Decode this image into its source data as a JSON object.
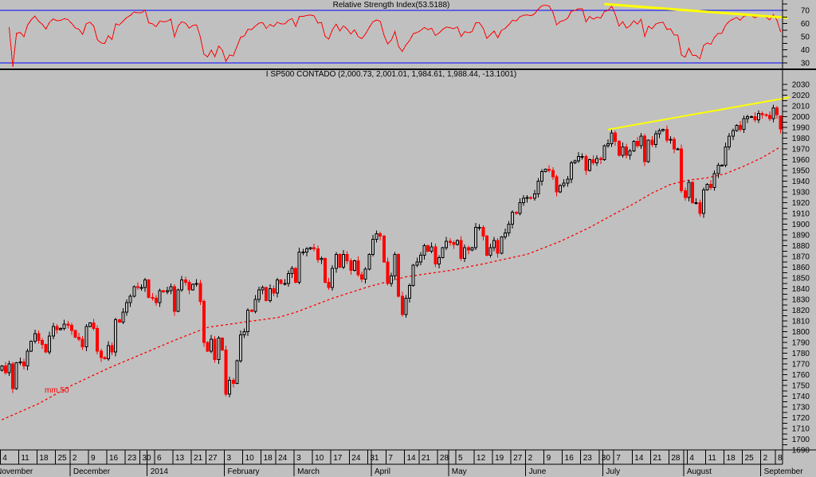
{
  "window": {
    "background": "#c0c0c0",
    "axis_text_color": "#000000"
  },
  "rsi_panel": {
    "title": "Relative Strength Index(53.5188)",
    "indicator": "Relative Strength Index",
    "current_value": 53.5188,
    "period": 14,
    "line_color": "#ff0000",
    "level_color": "#0000ff",
    "levels_labeled": [
      70,
      60,
      50,
      40,
      30
    ],
    "overbought": 70,
    "oversold": 30,
    "trendline": {
      "color": "#ffff00",
      "from_day": 164,
      "from_value": 74.8,
      "to_day": 214,
      "to_value": 64.3
    }
  },
  "price_panel": {
    "title": "I SP500 CONTADO (2,000.73, 2,001.01, 1,984.61, 1,988.44, -13.1001)",
    "symbol": "I SP500 CONTADO",
    "last": {
      "open": 2000.73,
      "high": 2001.01,
      "low": 1984.61,
      "close": 1988.44,
      "change": -13.1001
    },
    "ma_label": "mm 50",
    "ma_color": "#ff0000",
    "up_color": "#000000",
    "down_color": "#ff0000",
    "trendline": {
      "color": "#ffff00",
      "from_day": 165,
      "from_price": 1988,
      "to_day": 214.5,
      "to_price": 2018
    }
  },
  "chart_data": {
    "type": "candlestick",
    "title": "I SP500 CONTADO daily with 50-day moving average and RSI(14)",
    "y_axis": {
      "min": 1690,
      "max": 2030,
      "step": 10,
      "minor_step": 5
    },
    "rsi_axis": {
      "labels": [
        70,
        60,
        50,
        40,
        30
      ],
      "minor_step": 5,
      "min_tick": 30,
      "max_tick": 75
    },
    "x_axis": {
      "tick_days": [
        0,
        5,
        10,
        15,
        19,
        24,
        29,
        34,
        38,
        42,
        47,
        52,
        56,
        61,
        66,
        71,
        75,
        80,
        85,
        90,
        95,
        100,
        105,
        110,
        114,
        119,
        124,
        129,
        134,
        139,
        143,
        148,
        153,
        158,
        163,
        167,
        172,
        177,
        182,
        187,
        192,
        197,
        202,
        207,
        211
      ],
      "tick_labels": [
        "4",
        "11",
        "18",
        "25",
        "2",
        "9",
        "16",
        "23",
        "30",
        "6",
        "13",
        "21",
        "27",
        "3",
        "10",
        "18",
        "24",
        "3",
        "10",
        "17",
        "24",
        "31",
        "7",
        "14",
        "21",
        "28",
        "5",
        "12",
        "19",
        "27",
        "2",
        "9",
        "16",
        "23",
        "30",
        "7",
        "14",
        "21",
        "28",
        "4",
        "11",
        "18",
        "25",
        "2",
        "8"
      ],
      "months": [
        {
          "day": -2,
          "label": "November"
        },
        {
          "day": 19,
          "label": "December"
        },
        {
          "day": 40,
          "label": "2014"
        },
        {
          "day": 61,
          "label": "February"
        },
        {
          "day": 80,
          "label": "March"
        },
        {
          "day": 101,
          "label": "April"
        },
        {
          "day": 122,
          "label": "May"
        },
        {
          "day": 143,
          "label": "June"
        },
        {
          "day": 164,
          "label": "July"
        },
        {
          "day": 186,
          "label": "August"
        },
        {
          "day": 207,
          "label": "September"
        }
      ]
    },
    "closes": [
      1768,
      1762,
      1770,
      1747,
      1771,
      1772,
      1768,
      1782,
      1791,
      1798,
      1792,
      1788,
      1781,
      1796,
      1805,
      1802,
      1803,
      1807,
      1806,
      1801,
      1795,
      1793,
      1786,
      1805,
      1808,
      1803,
      1782,
      1776,
      1775,
      1787,
      1781,
      1811,
      1809,
      1818,
      1827,
      1833,
      1842,
      1841,
      1841,
      1848,
      1832,
      1831,
      1827,
      1838,
      1837,
      1838,
      1842,
      1819,
      1839,
      1848,
      1846,
      1839,
      1844,
      1845,
      1828,
      1790,
      1782,
      1793,
      1774,
      1794,
      1783,
      1742,
      1755,
      1752,
      1773,
      1797,
      1800,
      1820,
      1819,
      1830,
      1839,
      1841,
      1829,
      1840,
      1836,
      1848,
      1845,
      1845,
      1854,
      1859,
      1846,
      1874,
      1874,
      1877,
      1878,
      1877,
      1867,
      1868,
      1846,
      1841,
      1859,
      1872,
      1860,
      1872,
      1866,
      1857,
      1866,
      1853,
      1849,
      1858,
      1872,
      1886,
      1891,
      1889,
      1865,
      1845,
      1852,
      1872,
      1833,
      1816,
      1831,
      1843,
      1862,
      1865,
      1871,
      1880,
      1875,
      1879,
      1863,
      1869,
      1878,
      1884,
      1883,
      1881,
      1885,
      1868,
      1878,
      1876,
      1878,
      1897,
      1897,
      1889,
      1871,
      1878,
      1885,
      1873,
      1888,
      1892,
      1900,
      1911,
      1910,
      1920,
      1924,
      1925,
      1924,
      1928,
      1940,
      1949,
      1951,
      1950,
      1944,
      1930,
      1936,
      1938,
      1942,
      1957,
      1959,
      1963,
      1963,
      1950,
      1960,
      1957,
      1961,
      1960,
      1973,
      1975,
      1985,
      1977,
      1964,
      1972,
      1964,
      1968,
      1977,
      1973,
      1982,
      1958,
      1978,
      1974,
      1984,
      1987,
      1988,
      1978,
      1979,
      1970,
      1970,
      1931,
      1925,
      1939,
      1920,
      1920,
      1910,
      1932,
      1937,
      1934,
      1947,
      1955,
      1955,
      1972,
      1982,
      1987,
      1992,
      1988,
      1998,
      2000,
      2000,
      1997,
      2003,
      2002,
      2001,
      1998,
      2008,
      2002,
      1988.44
    ],
    "ma50_anchors": [
      [
        0,
        1718
      ],
      [
        10,
        1733
      ],
      [
        19,
        1750
      ],
      [
        29,
        1766
      ],
      [
        38,
        1779
      ],
      [
        47,
        1792
      ],
      [
        56,
        1804
      ],
      [
        66,
        1809
      ],
      [
        75,
        1813
      ],
      [
        80,
        1818
      ],
      [
        90,
        1831
      ],
      [
        100,
        1842
      ],
      [
        110,
        1851
      ],
      [
        122,
        1857
      ],
      [
        131,
        1863
      ],
      [
        143,
        1872
      ],
      [
        152,
        1884
      ],
      [
        160,
        1897
      ],
      [
        167,
        1910
      ],
      [
        172,
        1919
      ],
      [
        177,
        1929
      ],
      [
        182,
        1937
      ],
      [
        187,
        1941
      ],
      [
        192,
        1943
      ],
      [
        197,
        1947
      ],
      [
        202,
        1954
      ],
      [
        207,
        1962
      ],
      [
        212,
        1972
      ]
    ]
  }
}
